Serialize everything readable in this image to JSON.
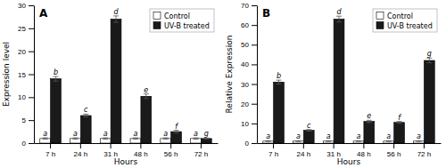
{
  "chart_data": [
    {
      "type": "bar",
      "title": "A",
      "x_label": "Hours",
      "y_label": "Expression level",
      "categories": [
        "7 h",
        "24 h",
        "31 h",
        "48 h",
        "56 h",
        "72 h"
      ],
      "series": [
        {
          "name": "Control",
          "color": "white",
          "values": [
            1.0,
            1.0,
            1.0,
            1.0,
            1.0,
            1.0
          ],
          "errors": [
            0.15,
            0.15,
            0.15,
            0.15,
            0.15,
            0.15
          ],
          "annotations": [
            "a",
            "a",
            "a",
            "a",
            "a",
            "a"
          ]
        },
        {
          "name": "UV-B treated",
          "color": "#1a1a1a",
          "values": [
            14.0,
            6.0,
            27.0,
            10.2,
            2.5,
            1.0
          ],
          "errors": [
            0.5,
            0.3,
            0.7,
            0.5,
            0.3,
            0.1
          ],
          "annotations": [
            "b",
            "c",
            "d",
            "e",
            "f",
            "g"
          ]
        }
      ],
      "ylim": [
        0,
        30
      ],
      "yticks": [
        0,
        5,
        10,
        15,
        20,
        25,
        30
      ],
      "grid": false,
      "legend": "upper right"
    },
    {
      "type": "bar",
      "title": "B",
      "x_label": "Hours",
      "y_label": "Relative Expression",
      "categories": [
        "7 h",
        "24 h",
        "31 h",
        "48 h",
        "56 h",
        "72 h"
      ],
      "series": [
        {
          "name": "Control",
          "color": "white",
          "values": [
            1.0,
            1.0,
            1.0,
            1.0,
            1.0,
            1.0
          ],
          "errors": [
            0.2,
            0.2,
            0.2,
            0.2,
            0.2,
            0.2
          ],
          "annotations": [
            "a",
            "a",
            "a",
            "a",
            "a",
            "a"
          ]
        },
        {
          "name": "UV-B treated",
          "color": "#1a1a1a",
          "values": [
            31.0,
            6.5,
            63.0,
            11.0,
            10.5,
            42.0
          ],
          "errors": [
            1.0,
            0.4,
            1.5,
            0.6,
            0.5,
            1.2
          ],
          "annotations": [
            "b",
            "c",
            "d",
            "e",
            "f",
            "g"
          ]
        }
      ],
      "ylim": [
        0,
        70
      ],
      "yticks": [
        0,
        10,
        20,
        30,
        40,
        50,
        60,
        70
      ],
      "grid": false,
      "legend": "upper right"
    }
  ]
}
